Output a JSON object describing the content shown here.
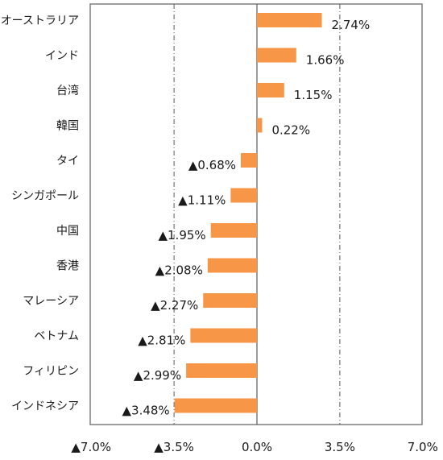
{
  "chart_data": {
    "type": "bar",
    "orientation": "horizontal",
    "categories": [
      "オーストラリア",
      "インド",
      "台湾",
      "韓国",
      "タイ",
      "シンガポール",
      "中国",
      "香港",
      "マレーシア",
      "ベトナム",
      "フィリピン",
      "インドネシア"
    ],
    "values": [
      2.74,
      1.66,
      1.15,
      0.22,
      -0.68,
      -1.11,
      -1.95,
      -2.08,
      -2.27,
      -2.81,
      -2.99,
      -3.48
    ],
    "value_labels": [
      "2.74%",
      "1.66%",
      "1.15%",
      "0.22%",
      "▲0.68%",
      "▲1.11%",
      "▲1.95%",
      "▲2.08%",
      "▲2.27%",
      "▲2.81%",
      "▲2.99%",
      "▲3.48%"
    ],
    "x_ticks": [
      -7.0,
      -3.5,
      0.0,
      3.5,
      7.0
    ],
    "x_tick_labels": [
      "▲7.0%",
      "▲3.5%",
      "0.0%",
      "3.5%",
      "7.0%"
    ],
    "xlim": [
      -7.0,
      7.0
    ],
    "grid": "vertical dash-dot lines at ±3.5%",
    "colors": {
      "bar": "#F79646",
      "frame": "#7f7f7f",
      "grid": "#595959",
      "text": "#1a1a1a"
    }
  }
}
